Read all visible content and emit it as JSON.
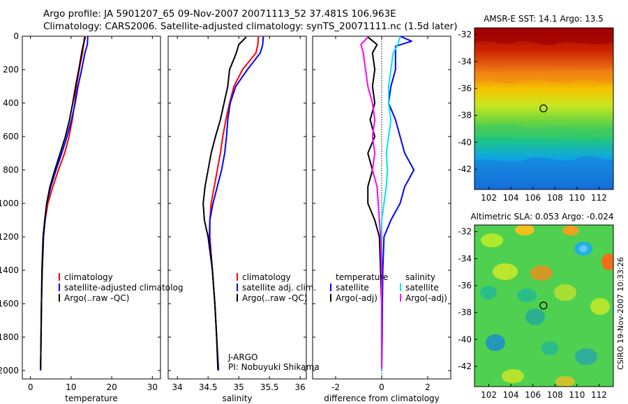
{
  "header": {
    "line1": "Argo profile: JA 5901207_65 09-Nov-2007 20071113_52 37.481S 106.963E",
    "line2": "Climatology: CARS2006. Satellite-adjusted climatology: synTS_20071111.nc (1.5d later)"
  },
  "credit": "CSIRO 19-Nov-2007 10:33:26",
  "colors": {
    "climatology": "#ff0000",
    "satellite": "#0000ff",
    "argo": "#000000",
    "sat_diff": "#00e5e5",
    "argo_diff": "#ff00ff"
  },
  "chart_data": [
    {
      "type": "line",
      "xlabel": "temperature",
      "xlim": [
        -2,
        32
      ],
      "xticks": [
        0,
        10,
        20,
        30
      ],
      "ylim": [
        0,
        2050
      ],
      "yticks": [
        0,
        200,
        400,
        600,
        800,
        1000,
        1200,
        1400,
        1600,
        1800,
        2000
      ],
      "y_reversed": true,
      "legend": [
        "climatology",
        "satellite-adjusted climatolog",
        "Argo(..raw -QC)"
      ],
      "series": [
        {
          "name": "climatology",
          "depth": [
            0,
            50,
            100,
            200,
            300,
            400,
            500,
            600,
            700,
            800,
            900,
            1000,
            1100,
            1200,
            1400,
            1600,
            1800,
            2000
          ],
          "values": [
            13.3,
            13.1,
            12.8,
            12.0,
            11.3,
            10.9,
            10.3,
            9.5,
            8.4,
            6.9,
            5.5,
            4.3,
            3.6,
            3.2,
            2.9,
            2.7,
            2.6,
            2.5
          ]
        },
        {
          "name": "satellite-adjusted climatolog",
          "depth": [
            0,
            50,
            100,
            200,
            300,
            400,
            500,
            600,
            700,
            800,
            900,
            1000,
            1100,
            1200,
            1400,
            1600,
            1800,
            2000
          ],
          "values": [
            14.1,
            14.0,
            13.4,
            12.6,
            11.7,
            11.0,
            10.1,
            9.0,
            7.7,
            6.3,
            5.0,
            4.0,
            3.5,
            3.1,
            2.8,
            2.7,
            2.6,
            2.5
          ]
        },
        {
          "name": "Argo(..raw -QC)",
          "depth": [
            5,
            50,
            100,
            200,
            300,
            400,
            500,
            600,
            700,
            800,
            900,
            1000,
            1100,
            1200,
            1400,
            1600,
            1800,
            1990
          ],
          "values": [
            13.5,
            13.0,
            12.6,
            11.9,
            11.1,
            10.4,
            9.6,
            8.6,
            7.3,
            6.0,
            4.8,
            4.0,
            3.6,
            3.2,
            2.9,
            2.7,
            2.6,
            2.5
          ]
        }
      ]
    },
    {
      "type": "line",
      "xlabel": "salinity",
      "xlim": [
        33.85,
        36.1
      ],
      "xticks": [
        34,
        34.5,
        35,
        35.5,
        36
      ],
      "ylim": [
        0,
        2050
      ],
      "y_reversed": true,
      "legend": [
        "climatology",
        "satellite adj. clim.",
        "Argo(..raw -QC)"
      ],
      "annotation": [
        "J-ARGO",
        "PI: Nobuyuki Shikama"
      ],
      "series": [
        {
          "name": "climatology",
          "depth": [
            0,
            50,
            100,
            200,
            300,
            400,
            500,
            600,
            700,
            800,
            900,
            1000,
            1100,
            1200,
            1400,
            1600,
            1800,
            2000
          ],
          "values": [
            35.32,
            35.31,
            35.28,
            35.06,
            34.92,
            34.85,
            34.79,
            34.74,
            34.7,
            34.65,
            34.6,
            34.55,
            34.53,
            34.53,
            34.57,
            34.61,
            34.64,
            34.66
          ]
        },
        {
          "name": "satellite adj. clim.",
          "depth": [
            0,
            50,
            100,
            200,
            300,
            400,
            500,
            600,
            700,
            800,
            900,
            1000,
            1100,
            1200,
            1400,
            1600,
            1800,
            2000
          ],
          "values": [
            35.4,
            35.39,
            35.35,
            35.14,
            34.95,
            34.86,
            34.82,
            34.8,
            34.77,
            34.72,
            34.65,
            34.58,
            34.53,
            34.52,
            34.57,
            34.61,
            34.64,
            34.67
          ]
        },
        {
          "name": "Argo(..raw -QC)",
          "depth": [
            5,
            50,
            100,
            200,
            300,
            400,
            500,
            600,
            700,
            800,
            900,
            1000,
            1100,
            1200,
            1400,
            1600,
            1800,
            1990
          ],
          "values": [
            35.12,
            35.0,
            34.96,
            34.85,
            34.82,
            34.76,
            34.7,
            34.62,
            34.55,
            34.5,
            34.45,
            34.42,
            34.44,
            34.5,
            34.57,
            34.61,
            34.64,
            34.66
          ]
        }
      ]
    },
    {
      "type": "line",
      "xlabel": "difference from climatology",
      "xlim": [
        -3,
        3
      ],
      "xticks": [
        -2,
        0,
        2
      ],
      "ylim": [
        0,
        2050
      ],
      "y_reversed": true,
      "legend": {
        "temperature": [
          "satellite",
          "Argo(-adj)"
        ],
        "salinity": [
          "satellite",
          "Argo(-adj)"
        ]
      },
      "series": [
        {
          "name": "temperature satellite",
          "depth": [
            0,
            30,
            60,
            100,
            200,
            300,
            400,
            500,
            600,
            700,
            800,
            900,
            1000,
            1100,
            1200,
            1400,
            1600,
            1800,
            2000
          ],
          "values": [
            0.8,
            1.3,
            0.6,
            0.6,
            0.6,
            0.4,
            0.3,
            0.6,
            0.8,
            1.0,
            1.4,
            1.0,
            0.8,
            0.4,
            0.1,
            0.05,
            0.03,
            0.02,
            0.0
          ]
        },
        {
          "name": "temperature Argo(-adj)",
          "depth": [
            5,
            50,
            100,
            200,
            300,
            400,
            500,
            600,
            700,
            800,
            900,
            1000,
            1100,
            1200,
            1400,
            1600,
            1800,
            1990
          ],
          "values": [
            -0.6,
            -0.2,
            -0.4,
            -0.3,
            -0.4,
            -0.3,
            -0.5,
            -0.3,
            -0.6,
            -0.4,
            -0.6,
            -0.6,
            -0.3,
            -0.1,
            -0.05,
            0.0,
            0.0,
            0.0
          ]
        },
        {
          "name": "salinity satellite",
          "depth": [
            0,
            50,
            100,
            200,
            300,
            400,
            500,
            600,
            700,
            800,
            900,
            1000,
            1100,
            1200,
            1400,
            1600,
            1800,
            2000
          ],
          "values": [
            0.8,
            0.7,
            0.5,
            0.4,
            0.3,
            0.3,
            0.4,
            0.3,
            0.2,
            0.25,
            0.2,
            0.1,
            0.0,
            0.0,
            0.0,
            0.0,
            0.0,
            0.0
          ]
        },
        {
          "name": "salinity Argo(-adj)",
          "depth": [
            5,
            50,
            100,
            200,
            300,
            400,
            500,
            600,
            700,
            800,
            900,
            1000,
            1100,
            1200,
            1400,
            1600,
            1800,
            1990
          ],
          "values": [
            -0.6,
            -0.9,
            -0.8,
            -0.7,
            -0.6,
            -0.4,
            -0.3,
            -0.4,
            -0.3,
            -0.4,
            -0.2,
            -0.15,
            -0.1,
            -0.05,
            0.0,
            0.0,
            0.0,
            0.0
          ]
        }
      ]
    },
    {
      "type": "heatmap",
      "title": "AMSR-E SST: 14.1 Argo: 13.5",
      "xlim": [
        100.7,
        113.3
      ],
      "ylim": [
        -43.5,
        -31.5
      ],
      "xticks": [
        102,
        104,
        106,
        108,
        110,
        112
      ],
      "yticks": [
        -32,
        -34,
        -36,
        -38,
        -40,
        -42
      ],
      "marker": {
        "lon": 106.96,
        "lat": -37.48
      }
    },
    {
      "type": "heatmap",
      "title": "Altimetric SLA: 0.053 Argo: -0.024",
      "xlim": [
        100.7,
        113.3
      ],
      "ylim": [
        -43.5,
        -31.5
      ],
      "xticks": [
        102,
        104,
        106,
        108,
        110,
        112
      ],
      "yticks": [
        -32,
        -34,
        -36,
        -38,
        -40,
        -42
      ],
      "marker": {
        "lon": 106.96,
        "lat": -37.48
      }
    }
  ]
}
